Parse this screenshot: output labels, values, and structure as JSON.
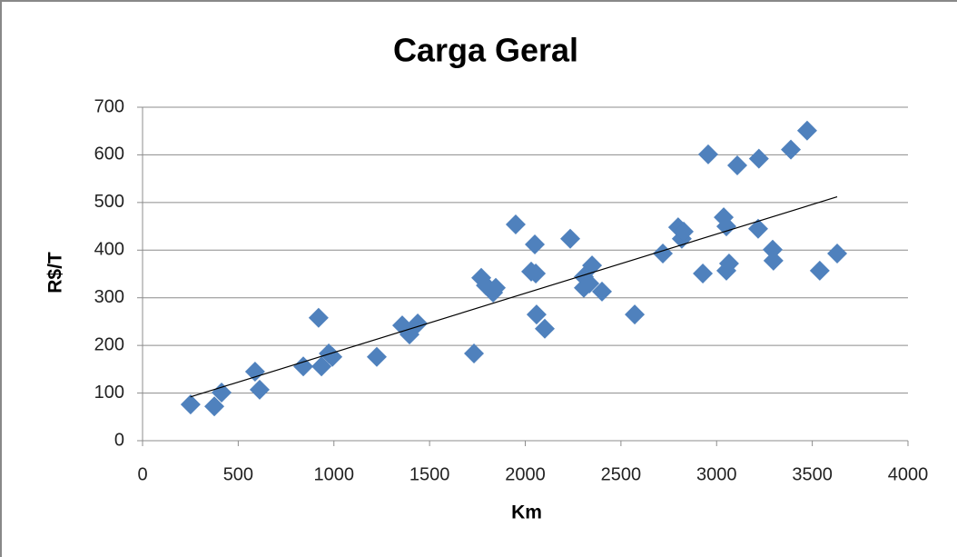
{
  "chart_data": {
    "type": "scatter",
    "title": "Carga Geral",
    "x_label": "Km",
    "y_label": "R$/T",
    "color": "#4f81bd",
    "grid": true,
    "xlim": [
      0,
      4000
    ],
    "xticks": [
      0,
      500,
      1000,
      1500,
      2000,
      2500,
      3000,
      3500,
      4000
    ],
    "ylim": [
      0,
      700
    ],
    "yticks": [
      0,
      100,
      200,
      300,
      400,
      500,
      600,
      700
    ],
    "x": [
      251,
      375,
      413,
      588,
      612,
      840,
      920,
      935,
      973,
      992,
      1224,
      1357,
      1395,
      1438,
      1732,
      1770,
      1794,
      1832,
      1846,
      1950,
      2031,
      2050,
      2055,
      2059,
      2102,
      2235,
      2306,
      2306,
      2335,
      2349,
      2401,
      2572,
      2719,
      2799,
      2818,
      2828,
      2928,
      2956,
      3051,
      3065,
      3037,
      3051,
      3108,
      3221,
      3217,
      3293,
      3297,
      3388,
      3473,
      3539,
      3630
    ],
    "values": [
      76,
      72,
      101,
      145,
      107,
      156,
      258,
      156,
      183,
      176,
      176,
      242,
      223,
      246,
      183,
      342,
      326,
      311,
      321,
      454,
      355,
      412,
      351,
      265,
      235,
      424,
      344,
      321,
      330,
      368,
      313,
      265,
      393,
      448,
      424,
      439,
      351,
      601,
      357,
      372,
      469,
      450,
      578,
      592,
      445,
      401,
      378,
      611,
      651,
      357,
      393
    ],
    "trendline": {
      "x": [
        250,
        3630
      ],
      "y": [
        92,
        512
      ],
      "color": "#000000"
    }
  }
}
